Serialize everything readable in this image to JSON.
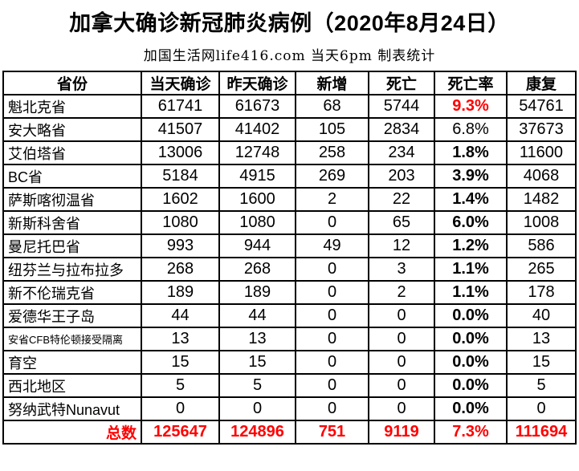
{
  "title": "加拿大确诊新冠肺炎病例（2020年8月24日）",
  "subtitle": "加国生活网life416.com 当天6pm 制表统计",
  "colors": {
    "accent_red": "#FF0000",
    "border": "#000000",
    "background": "#FFFFFF"
  },
  "chart_data": {
    "type": "table",
    "title": "加拿大确诊新冠肺炎病例（2020年8月24日）",
    "subtitle": "加国生活网life416.com 当天6pm 制表统计",
    "columns": [
      "省份",
      "当天确诊",
      "昨天确诊",
      "新增",
      "死亡",
      "死亡率",
      "康复"
    ],
    "rows": [
      {
        "province": "魁北克省",
        "today": "61741",
        "yesterday": "61673",
        "new": "68",
        "deaths": "5744",
        "death_rate": "9.3%",
        "recovered": "54761",
        "rate_class": "rate-red",
        "small_label": false
      },
      {
        "province": "安大略省",
        "today": "41507",
        "yesterday": "41402",
        "new": "105",
        "deaths": "2834",
        "death_rate": "6.8%",
        "recovered": "37673",
        "rate_class": "rate-normal",
        "small_label": false
      },
      {
        "province": "艾伯塔省",
        "today": "13006",
        "yesterday": "12748",
        "new": "258",
        "deaths": "234",
        "death_rate": "1.8%",
        "recovered": "11600",
        "rate_class": "rate-bold",
        "small_label": false
      },
      {
        "province": "BC省",
        "today": "5184",
        "yesterday": "4915",
        "new": "269",
        "deaths": "203",
        "death_rate": "3.9%",
        "recovered": "4068",
        "rate_class": "rate-bold",
        "small_label": false
      },
      {
        "province": "萨斯喀彻温省",
        "today": "1602",
        "yesterday": "1600",
        "new": "2",
        "deaths": "22",
        "death_rate": "1.4%",
        "recovered": "1482",
        "rate_class": "rate-bold",
        "small_label": false
      },
      {
        "province": "新斯科舍省",
        "today": "1080",
        "yesterday": "1080",
        "new": "0",
        "deaths": "65",
        "death_rate": "6.0%",
        "recovered": "1008",
        "rate_class": "rate-bold",
        "small_label": false
      },
      {
        "province": "曼尼托巴省",
        "today": "993",
        "yesterday": "944",
        "new": "49",
        "deaths": "12",
        "death_rate": "1.2%",
        "recovered": "586",
        "rate_class": "rate-bold",
        "small_label": false
      },
      {
        "province": "纽芬兰与拉布拉多",
        "today": "268",
        "yesterday": "268",
        "new": "0",
        "deaths": "3",
        "death_rate": "1.1%",
        "recovered": "265",
        "rate_class": "rate-bold",
        "small_label": false
      },
      {
        "province": "新不伦瑞克省",
        "today": "189",
        "yesterday": "189",
        "new": "0",
        "deaths": "2",
        "death_rate": "1.1%",
        "recovered": "178",
        "rate_class": "rate-bold",
        "small_label": false
      },
      {
        "province": "爱德华王子岛",
        "today": "44",
        "yesterday": "44",
        "new": "0",
        "deaths": "0",
        "death_rate": "0.0%",
        "recovered": "40",
        "rate_class": "rate-bold",
        "small_label": false
      },
      {
        "province": "安省CFB特伦顿接受隔离",
        "today": "13",
        "yesterday": "13",
        "new": "0",
        "deaths": "0",
        "death_rate": "0.0%",
        "recovered": "13",
        "rate_class": "rate-bold",
        "small_label": true
      },
      {
        "province": "育空",
        "today": "15",
        "yesterday": "15",
        "new": "0",
        "deaths": "0",
        "death_rate": "0.0%",
        "recovered": "15",
        "rate_class": "rate-bold",
        "small_label": false
      },
      {
        "province": "西北地区",
        "today": "5",
        "yesterday": "5",
        "new": "0",
        "deaths": "0",
        "death_rate": "0.0%",
        "recovered": "5",
        "rate_class": "rate-bold",
        "small_label": false
      },
      {
        "province": "努纳武特Nunavut",
        "today": "0",
        "yesterday": "0",
        "new": "0",
        "deaths": "0",
        "death_rate": "0.0%",
        "recovered": "0",
        "rate_class": "rate-bold",
        "small_label": false
      }
    ],
    "total": {
      "label": "总数",
      "today": "125647",
      "yesterday": "124896",
      "new": "751",
      "deaths": "9119",
      "death_rate": "7.3%",
      "recovered": "111694"
    }
  }
}
